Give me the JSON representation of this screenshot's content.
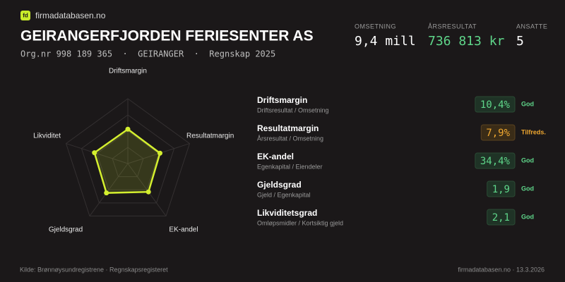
{
  "brand": "firmadatabasen.no",
  "header": {
    "title": "GEIRANGERFJORDEN FERIESENTER AS",
    "subtitle": "Org.nr 998 189 365  ·  GEIRANGER  ·  Regnskap 2025"
  },
  "stats": [
    {
      "label": "OMSETNING",
      "value": "9,4 mill"
    },
    {
      "label": "ÅRSRESULTAT",
      "value": "736 813 kr"
    },
    {
      "label": "ANSATTE",
      "value": "5"
    }
  ],
  "chart_data": {
    "type": "radar",
    "categories": [
      "Driftsmargin",
      "Resultatmargin",
      "EK-andel",
      "Gjeldsgrad",
      "Likviditet"
    ],
    "values": [
      53,
      52,
      54,
      56,
      54
    ],
    "rlim": [
      0,
      100
    ],
    "rticks": [
      25,
      50,
      75,
      100
    ],
    "color": "#d4ef2f",
    "grid": true
  },
  "metrics": [
    {
      "name": "Driftsmargin",
      "formula": "Driftsresultat / Omsetning",
      "value": "10,4%",
      "rating": "God"
    },
    {
      "name": "Resultatmargin",
      "formula": "Årsresultat / Omsetning",
      "value": "7,9%",
      "rating": "Tilfreds."
    },
    {
      "name": "EK-andel",
      "formula": "Egenkapital / Eiendeler",
      "value": "34,4%",
      "rating": "God"
    },
    {
      "name": "Gjeldsgrad",
      "formula": "Gjeld / Egenkapital",
      "value": "1,9",
      "rating": "God"
    },
    {
      "name": "Likviditetsgrad",
      "formula": "Omløpsmidler / Kortsiktig gjeld",
      "value": "2,1",
      "rating": "God"
    }
  ],
  "footer": {
    "source": "Kilde: Brønnøysundregistrene · Regnskapsregisteret",
    "site": "firmadatabasen.no · 13.3.2026"
  }
}
